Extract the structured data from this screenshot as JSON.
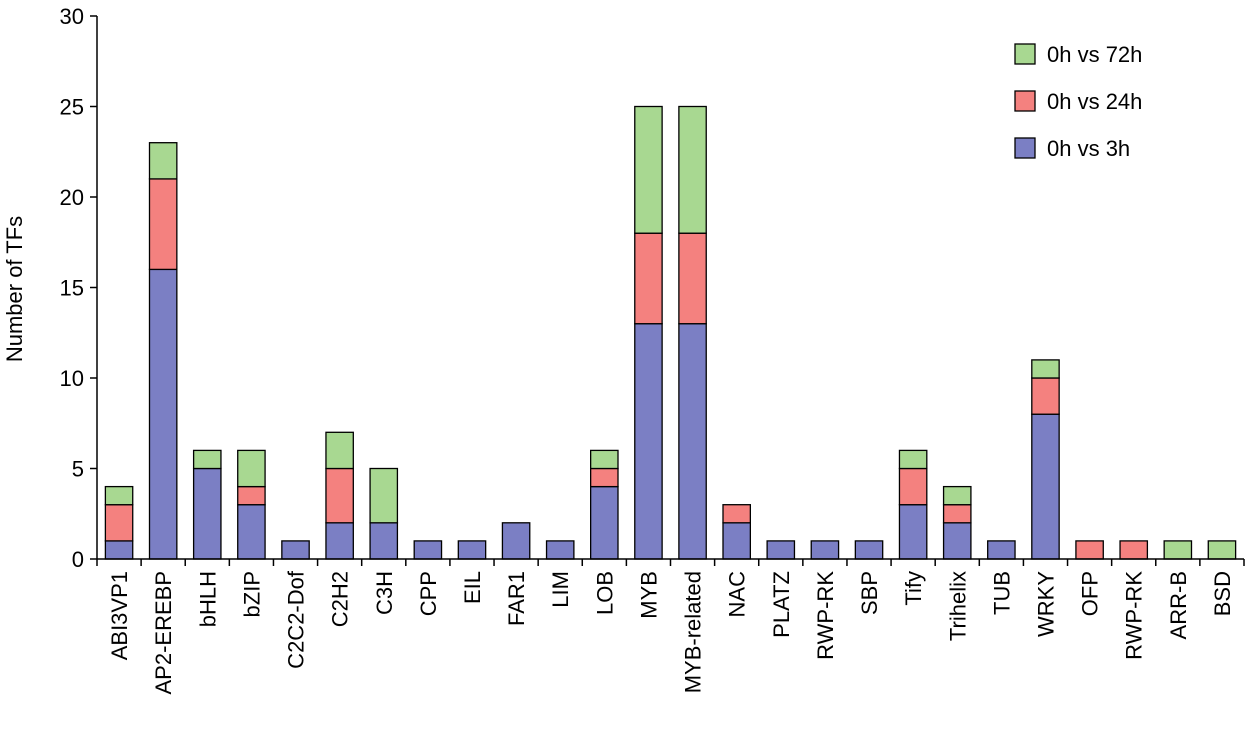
{
  "chart_data": {
    "type": "bar",
    "stacked": true,
    "ylabel": "Number of TFs",
    "xlabel": "",
    "ylim": [
      0,
      30
    ],
    "yticks": [
      0,
      5,
      10,
      15,
      20,
      25,
      30
    ],
    "grid": false,
    "legend_position": "top-right",
    "categories": [
      "ABI3VP1",
      "AP2-EREBP",
      "bHLH",
      "bZIP",
      "C2C2-Dof",
      "C2H2",
      "C3H",
      "CPP",
      "EIL",
      "FAR1",
      "LIM",
      "LOB",
      "MYB",
      "MYB-related",
      "NAC",
      "PLATZ",
      "RWP-RK",
      "SBP",
      "Tify",
      "Trihelix",
      "TUB",
      "WRKY",
      "OFP",
      "RWP-RK",
      "ARR-B",
      "BSD"
    ],
    "series": [
      {
        "name": "0h vs 3h",
        "color": "#7b7fc4",
        "values": [
          1,
          16,
          5,
          3,
          1,
          2,
          2,
          1,
          1,
          2,
          1,
          4,
          13,
          13,
          2,
          1,
          1,
          1,
          3,
          2,
          1,
          8,
          0,
          0,
          0,
          0
        ]
      },
      {
        "name": "0h vs 24h",
        "color": "#f4817f",
        "values": [
          2,
          5,
          0,
          1,
          0,
          3,
          0,
          0,
          0,
          0,
          0,
          1,
          5,
          5,
          1,
          0,
          0,
          0,
          2,
          1,
          0,
          2,
          1,
          1,
          0,
          0
        ]
      },
      {
        "name": "0h vs 72h",
        "color": "#a8d891",
        "values": [
          1,
          2,
          1,
          2,
          0,
          2,
          3,
          0,
          0,
          0,
          0,
          1,
          7,
          7,
          0,
          0,
          0,
          0,
          1,
          1,
          0,
          1,
          0,
          0,
          1,
          1
        ]
      }
    ],
    "legend_order": [
      "0h vs 72h",
      "0h vs 24h",
      "0h vs 3h"
    ]
  }
}
